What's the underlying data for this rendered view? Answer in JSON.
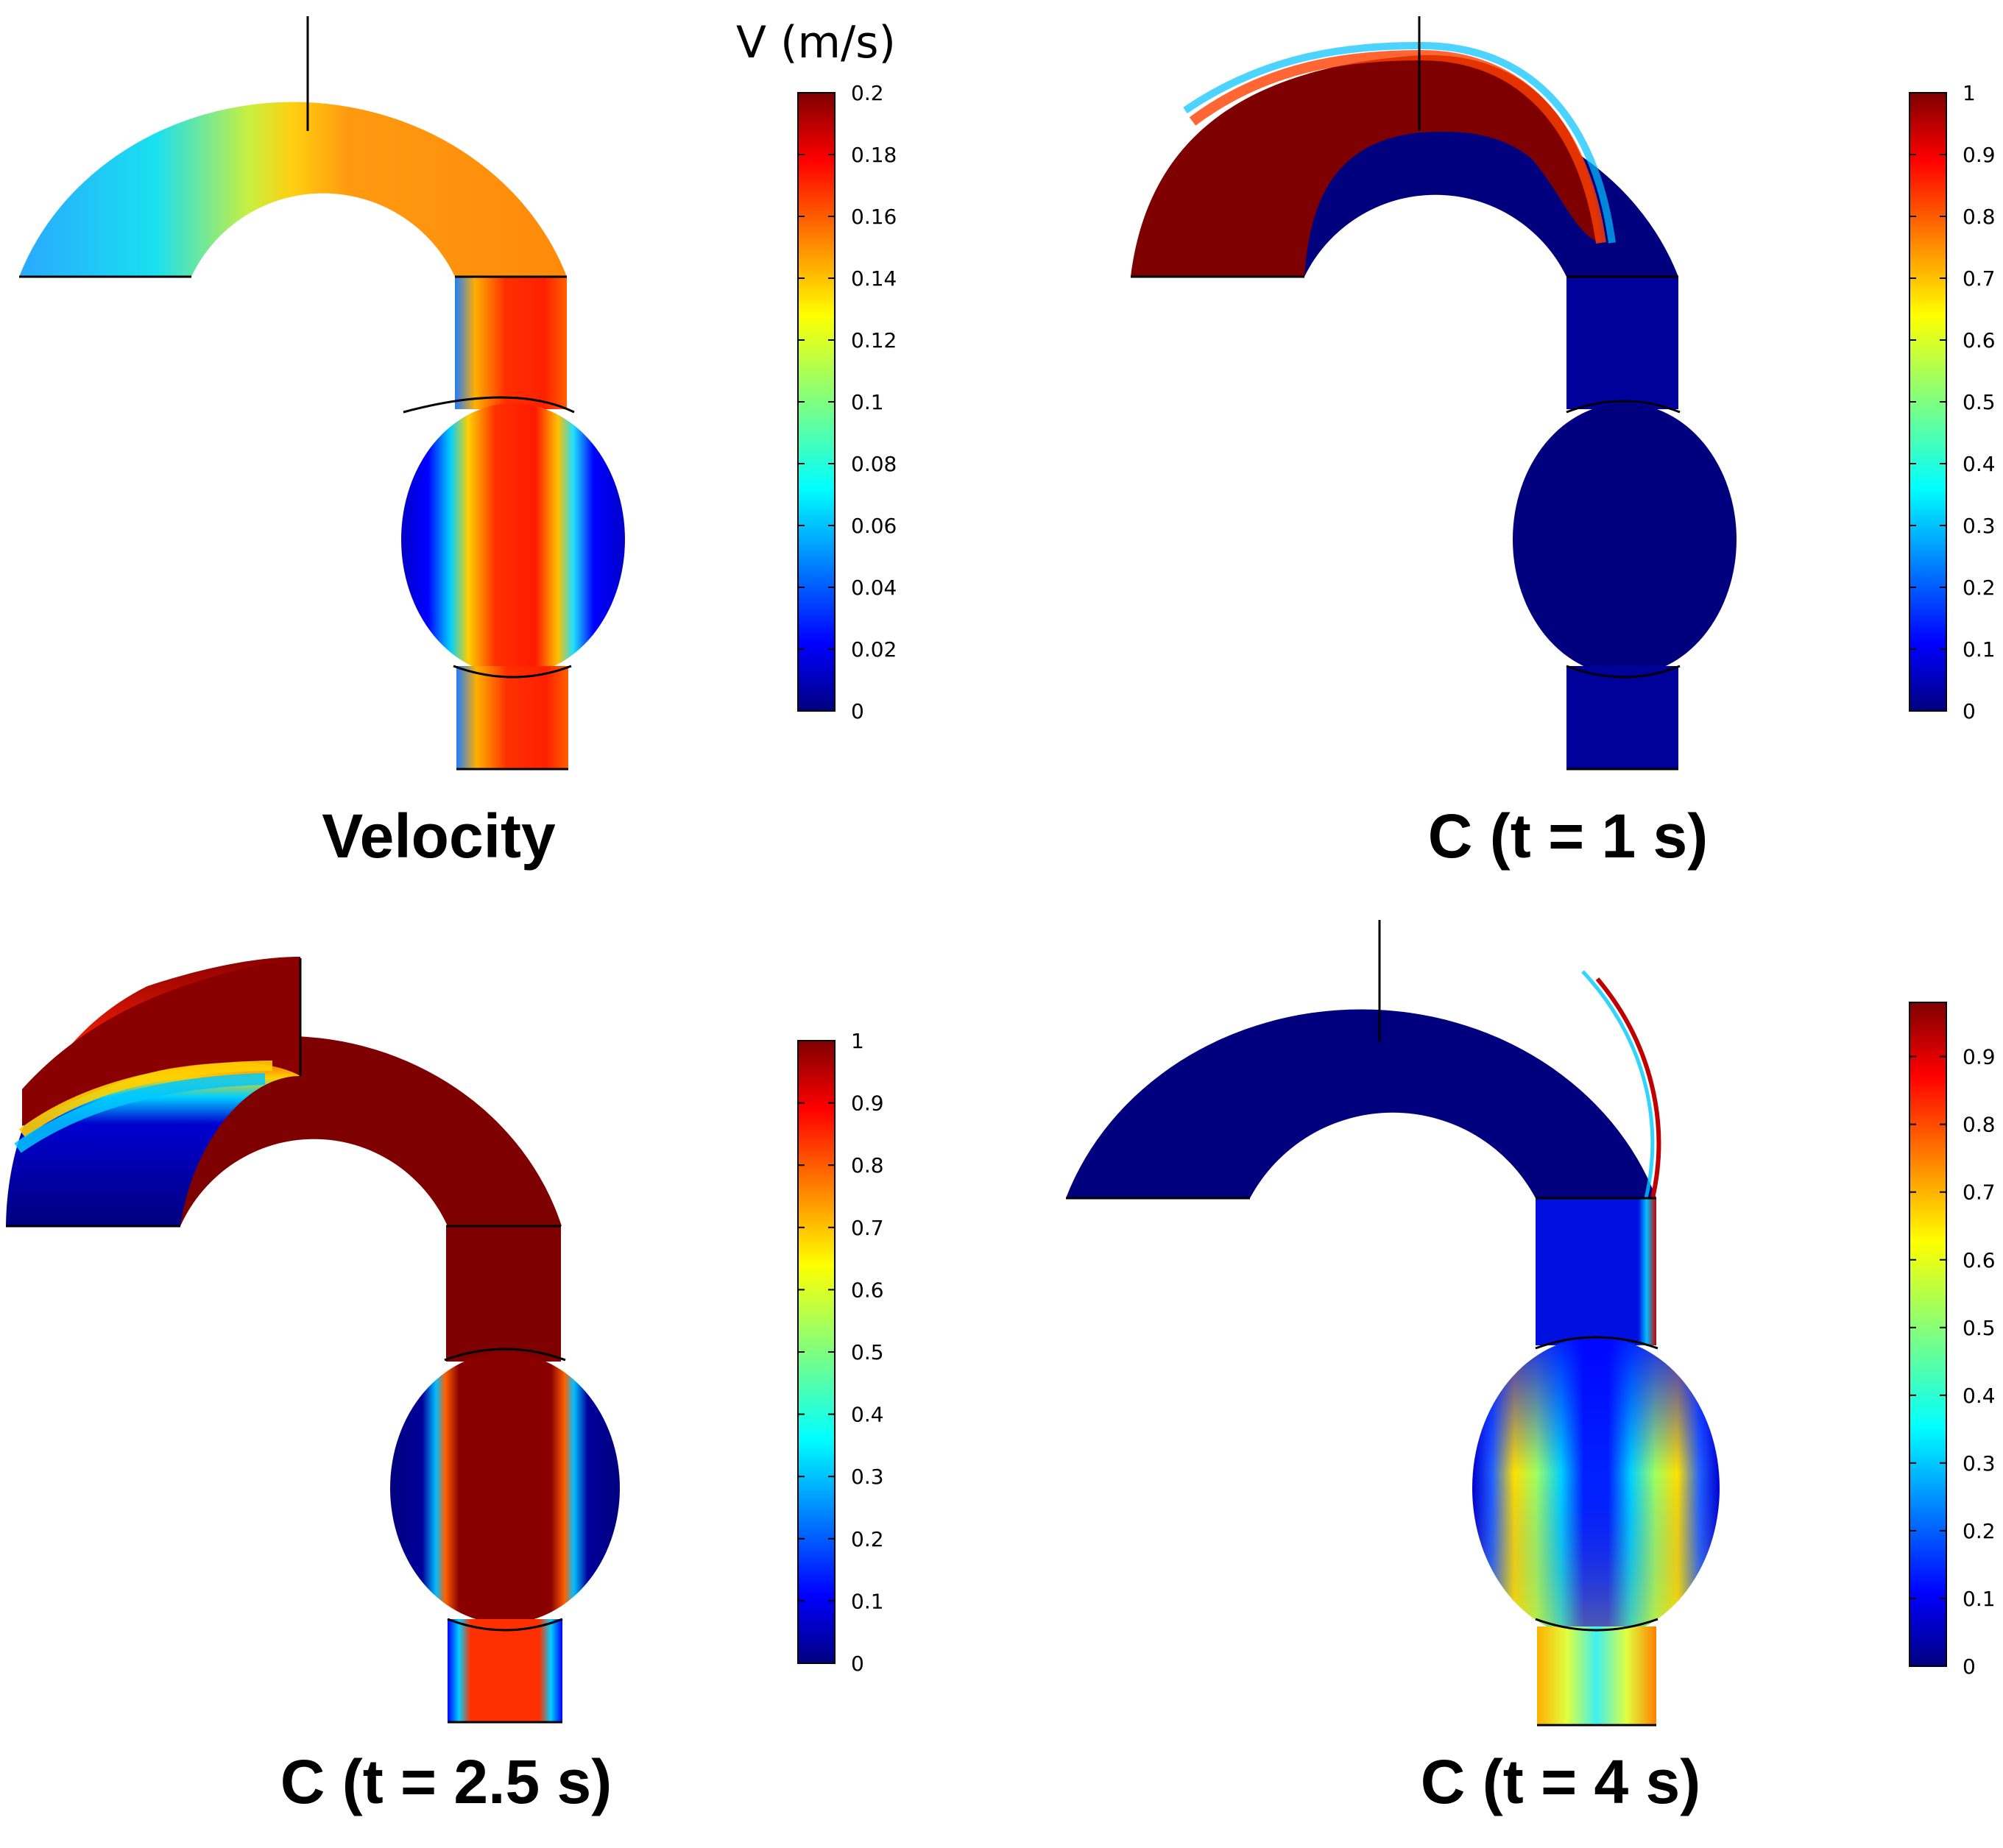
{
  "figure": {
    "panels": [
      {
        "id": "velocity",
        "caption": "Velocity",
        "colorbar_title": "V (m/s)",
        "ticks": [
          "0.2",
          "0.18",
          "0.16",
          "0.14",
          "0.12",
          "0.1",
          "0.08",
          "0.06",
          "0.04",
          "0.02",
          "0"
        ],
        "range": [
          0,
          0.2
        ]
      },
      {
        "id": "c1",
        "caption": "C (t = 1 s)",
        "colorbar_title": "",
        "ticks": [
          "1",
          "0.9",
          "0.8",
          "0.7",
          "0.6",
          "0.5",
          "0.4",
          "0.3",
          "0.2",
          "0.1",
          "0"
        ],
        "range": [
          0,
          1
        ]
      },
      {
        "id": "c25",
        "caption": "C (t = 2.5 s)",
        "colorbar_title": "",
        "ticks": [
          "1",
          "0.9",
          "0.8",
          "0.7",
          "0.6",
          "0.5",
          "0.4",
          "0.3",
          "0.2",
          "0.1",
          "0"
        ],
        "range": [
          0,
          1
        ]
      },
      {
        "id": "c4",
        "caption": "C (t = 4 s)",
        "colorbar_title": "",
        "ticks": [
          "0.9",
          "0.8",
          "0.7",
          "0.6",
          "0.5",
          "0.4",
          "0.3",
          "0.2",
          "0.1",
          "0"
        ],
        "range": [
          0,
          0.98
        ]
      }
    ],
    "colormap": [
      "#00007f",
      "#0000ff",
      "#007fff",
      "#00ffff",
      "#7fff7f",
      "#ffff00",
      "#ff7f00",
      "#ff0000",
      "#7f0000"
    ]
  }
}
